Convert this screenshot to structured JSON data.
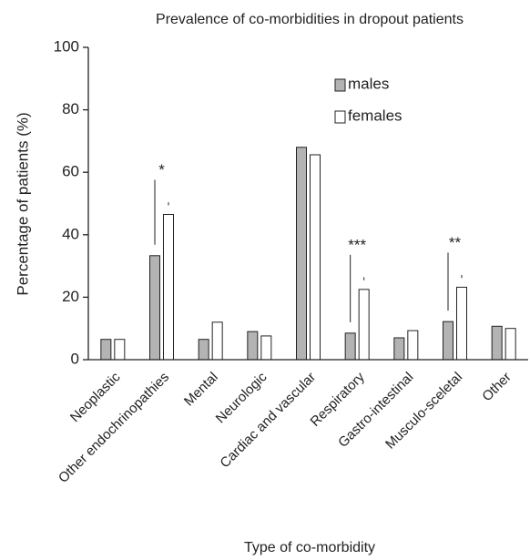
{
  "chart_data": {
    "type": "bar",
    "title": "Prevalence of co-morbidities in dropout patients",
    "xlabel": "Type of co-morbidity",
    "ylabel": "Percentage of patients (%)",
    "categories": [
      "Neoplastic",
      "Other endochrinopathies",
      "Mental",
      "Neurologic",
      "Cardiac and vascular",
      "Respiratory",
      "Gastro-intestinal",
      "Musculo-sceletal",
      "Other"
    ],
    "series": [
      {
        "name": "males",
        "color": "#b3b3b3",
        "values": [
          6.5,
          33.3,
          6.5,
          9,
          68,
          8.5,
          7,
          12.2,
          10.7
        ]
      },
      {
        "name": "females",
        "color": "#ffffff",
        "values": [
          6.5,
          46.5,
          12,
          7.6,
          65.6,
          22.5,
          9.3,
          23.2,
          10
        ]
      }
    ],
    "ylim": [
      0,
      100
    ],
    "yticks": [
      0,
      20,
      40,
      60,
      80,
      100
    ],
    "annotations": [
      "*",
      "***",
      "**"
    ],
    "legend": "upper right",
    "grid": false
  }
}
